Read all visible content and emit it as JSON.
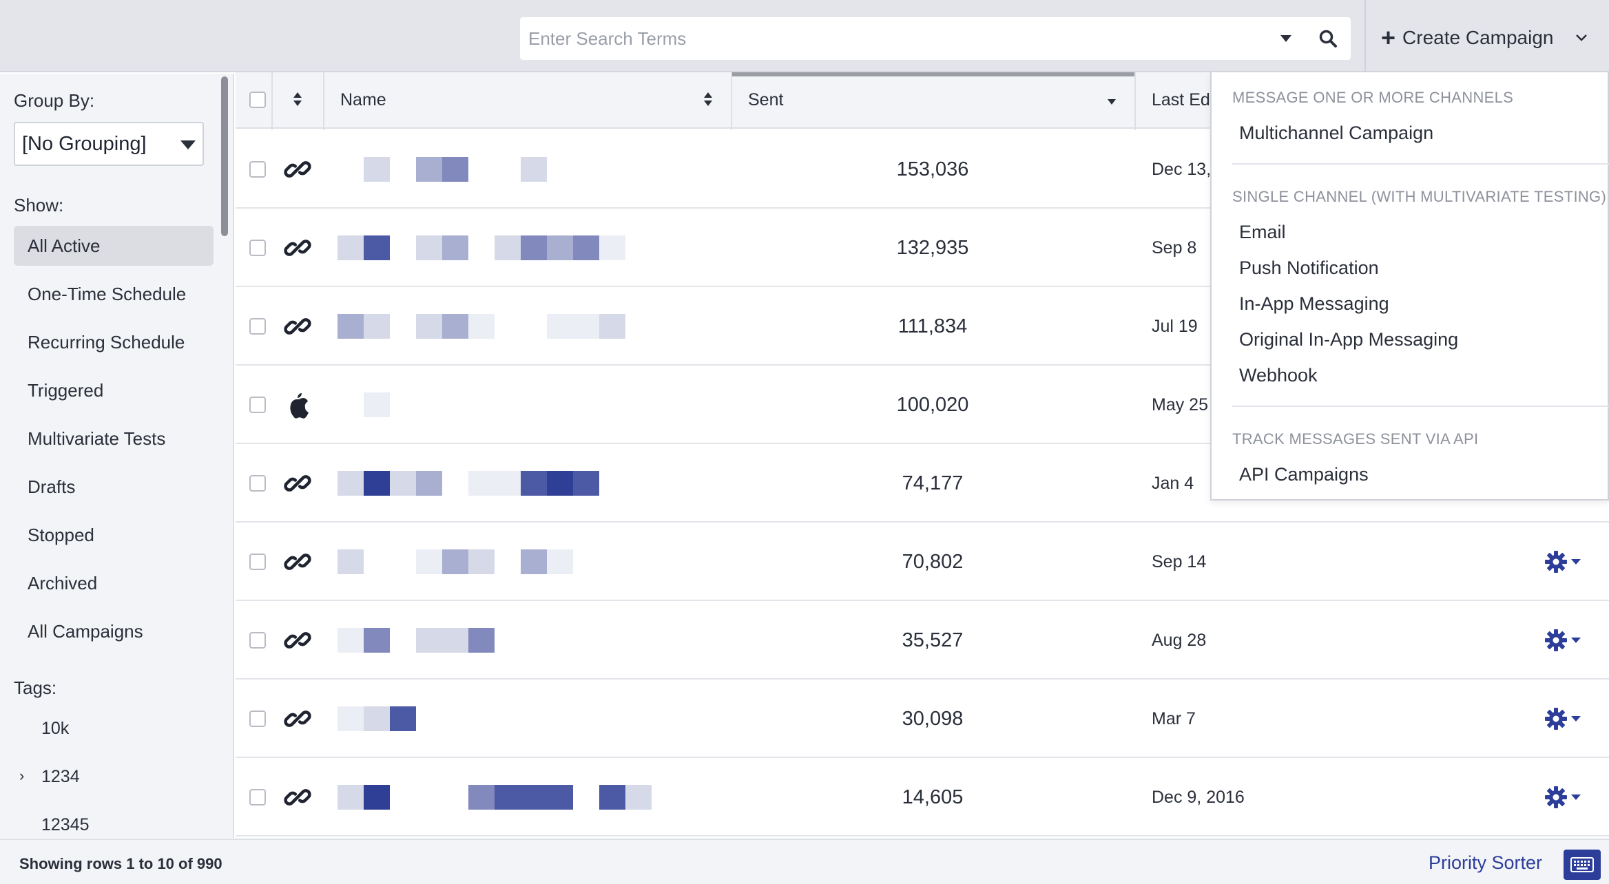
{
  "search": {
    "placeholder": "Enter Search Terms"
  },
  "create_campaign": {
    "label": "Create Campaign"
  },
  "sidebar": {
    "group_by_label": "Group By:",
    "group_by_value": "[No Grouping]",
    "show_label": "Show:",
    "show_items": [
      "All Active",
      "One-Time Schedule",
      "Recurring Schedule",
      "Triggered",
      "Multivariate Tests",
      "Drafts",
      "Stopped",
      "Archived",
      "All Campaigns"
    ],
    "active_item": "All Active",
    "tags_label": "Tags:",
    "tags": [
      "10k",
      "1234",
      "12345"
    ]
  },
  "table": {
    "headers": {
      "name": "Name",
      "sent": "Sent",
      "last_edited": "Last Ed"
    },
    "rows": [
      {
        "icon": "link-icon",
        "sent": "153,036",
        "date": "Dec 13,"
      },
      {
        "icon": "link-icon",
        "sent": "132,935",
        "date": "Sep 8"
      },
      {
        "icon": "link-icon",
        "sent": "111,834",
        "date": "Jul 19"
      },
      {
        "icon": "apple-icon",
        "sent": "100,020",
        "date": "May 25"
      },
      {
        "icon": "link-icon",
        "sent": "74,177",
        "date": "Jan 4"
      },
      {
        "icon": "link-icon",
        "sent": "70,802",
        "date": "Sep 14"
      },
      {
        "icon": "link-icon",
        "sent": "35,527",
        "date": "Aug 28"
      },
      {
        "icon": "link-icon",
        "sent": "30,098",
        "date": "Mar 7"
      },
      {
        "icon": "link-icon",
        "sent": "14,605",
        "date": "Dec 9, 2016"
      }
    ]
  },
  "menu": {
    "section1_header": "MESSAGE ONE OR MORE CHANNELS",
    "section1_items": [
      "Multichannel Campaign"
    ],
    "section2_header": "SINGLE CHANNEL (WITH MULTIVARIATE TESTING)",
    "section2_items": [
      "Email",
      "Push Notification",
      "In-App Messaging",
      "Original In-App Messaging",
      "Webhook"
    ],
    "section3_header": "TRACK MESSAGES SENT VIA API",
    "section3_items": [
      "API Campaigns"
    ]
  },
  "footer": {
    "rows_text": "Showing rows 1 to 10 of 990",
    "priority_sorter": "Priority Sorter"
  },
  "colors": {
    "accent": "#2d3e9a",
    "header_bg": "#e3e5ea"
  }
}
